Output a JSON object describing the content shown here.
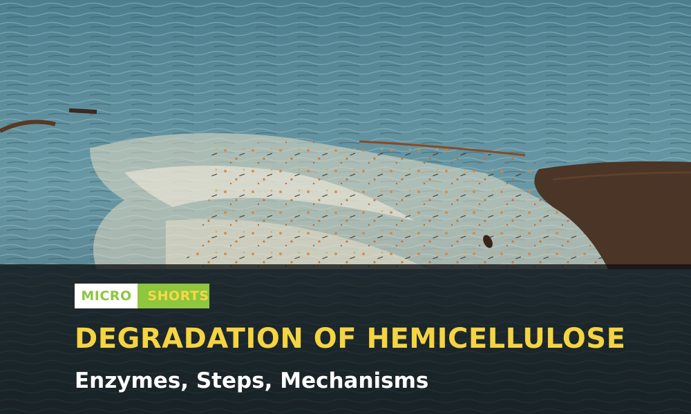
{
  "logo": {
    "left_text": "MICRO",
    "right_text": "SHORTS",
    "colors": {
      "green": "#8dc63f",
      "yellow": "#f7d945",
      "white": "#ffffff"
    }
  },
  "banner": {
    "title": "DEGRADATION OF HEMICELLULOSE",
    "subtitle": "Enzymes, Steps, Mechanisms",
    "title_color": "#f5d442",
    "subtitle_color": "#ffffff"
  },
  "scene": {
    "water_color": "#5d8c9a",
    "foam_color": "#e6e2cf",
    "shore_color": "#4a3526"
  }
}
